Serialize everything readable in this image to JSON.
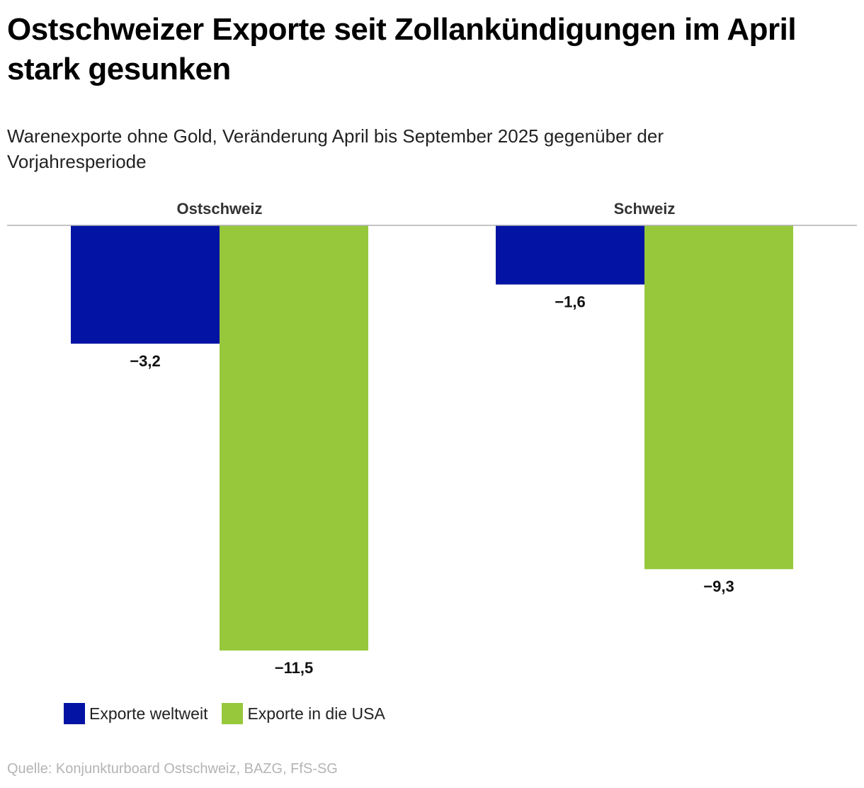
{
  "title": "Ostschweizer Exporte seit Zollankündigungen im April stark gesunken",
  "subtitle": "Warenexporte ohne Gold, Veränderung April bis September 2025 gegenüber der Vorjahresperiode",
  "source": "Quelle: Konjunkturboard Ostschweiz, BAZG, FfS-SG",
  "legend": {
    "items": [
      {
        "label": "Exporte weltweit",
        "color": "#0313a4"
      },
      {
        "label": "Exporte in die USA",
        "color": "#97c83c"
      }
    ]
  },
  "chart_data": {
    "type": "bar",
    "orientation": "vertical",
    "categories": [
      "Ostschweiz",
      "Schweiz"
    ],
    "series": [
      {
        "name": "Exporte weltweit",
        "color": "#0313a4",
        "values": [
          -3.2,
          -1.6
        ],
        "labels": [
          "−3,2",
          "−1,6"
        ]
      },
      {
        "name": "Exporte in die USA",
        "color": "#97c83c",
        "values": [
          -11.5,
          -9.3
        ],
        "labels": [
          "−11,5",
          "−9,3"
        ]
      }
    ],
    "ylim": [
      -11.5,
      0
    ],
    "grid": false,
    "legend_position": "bottom-left"
  }
}
